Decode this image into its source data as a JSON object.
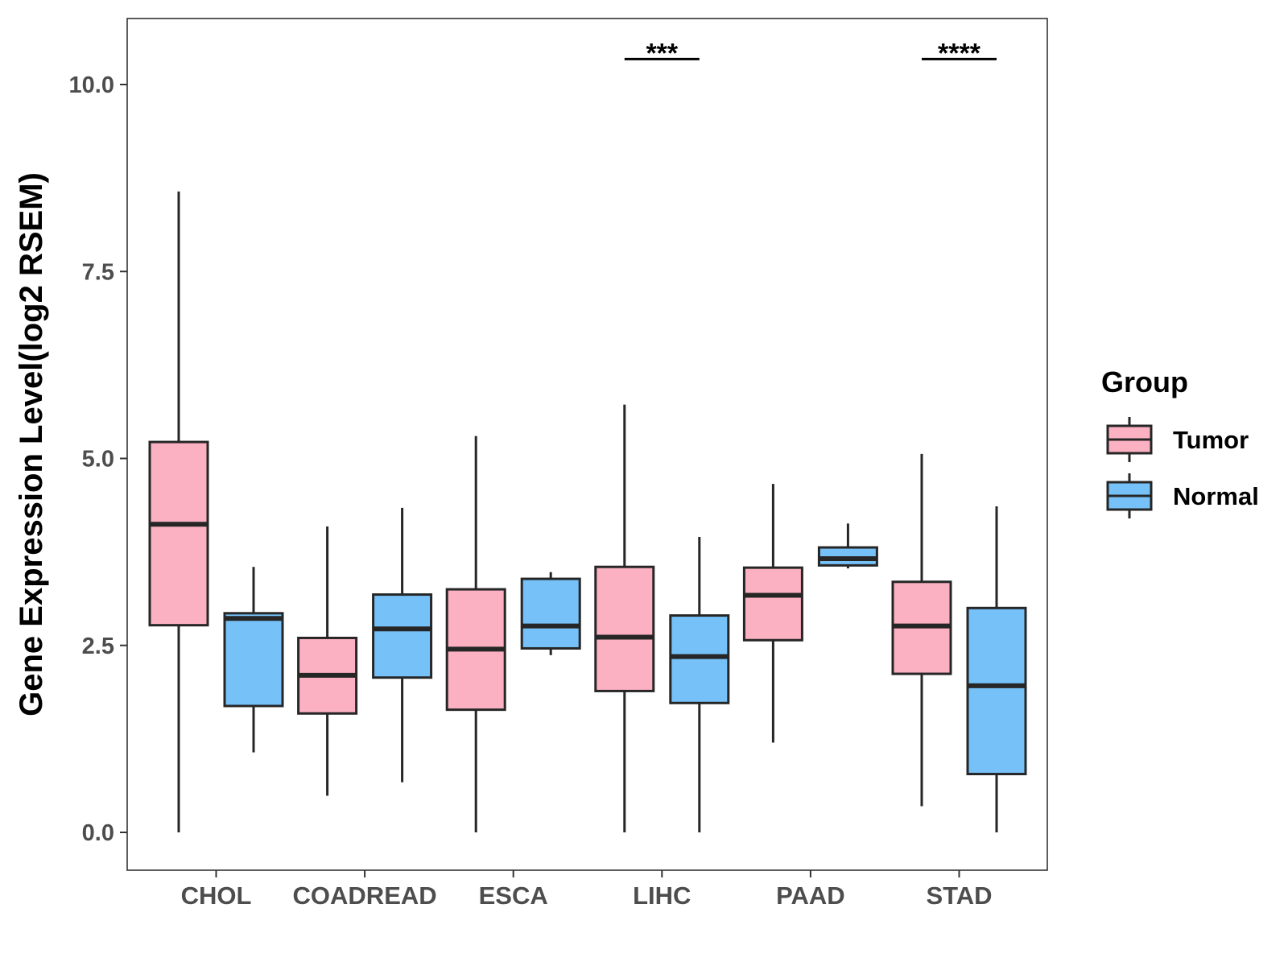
{
  "chart_data": {
    "type": "boxplot",
    "title": "",
    "xlabel": "",
    "ylabel": "Gene Expression Level(log2 RSEM)",
    "ylim": [
      -0.5,
      10.9
    ],
    "yticks": [
      0.0,
      2.5,
      5.0,
      7.5,
      10.0
    ],
    "ytick_labels": [
      "0.0",
      "2.5",
      "5.0",
      "7.5",
      "10.0"
    ],
    "categories": [
      "CHOL",
      "COADREAD",
      "ESCA",
      "LIHC",
      "PAAD",
      "STAD"
    ],
    "legend": {
      "title": "Group",
      "position": "right",
      "items": [
        {
          "label": "Tumor",
          "color": "#FBB1C1"
        },
        {
          "label": "Normal",
          "color": "#75C1F8"
        }
      ]
    },
    "series": [
      {
        "name": "Tumor",
        "color": "#FBB1C1",
        "boxes": [
          {
            "category": "CHOL",
            "min": 0.0,
            "q1": 2.77,
            "median": 4.12,
            "q3": 5.22,
            "max": 8.57
          },
          {
            "category": "COADREAD",
            "min": 0.49,
            "q1": 1.59,
            "median": 2.1,
            "q3": 2.6,
            "max": 4.09
          },
          {
            "category": "ESCA",
            "min": 0.0,
            "q1": 1.64,
            "median": 2.45,
            "q3": 3.25,
            "max": 5.3
          },
          {
            "category": "LIHC",
            "min": 0.0,
            "q1": 1.89,
            "median": 2.61,
            "q3": 3.55,
            "max": 5.72
          },
          {
            "category": "PAAD",
            "min": 1.2,
            "q1": 2.57,
            "median": 3.17,
            "q3": 3.54,
            "max": 4.66
          },
          {
            "category": "STAD",
            "min": 0.35,
            "q1": 2.12,
            "median": 2.76,
            "q3": 3.35,
            "max": 5.06
          }
        ]
      },
      {
        "name": "Normal",
        "color": "#75C1F8",
        "boxes": [
          {
            "category": "CHOL",
            "min": 1.07,
            "q1": 1.69,
            "median": 2.86,
            "q3": 2.93,
            "max": 3.55
          },
          {
            "category": "COADREAD",
            "min": 0.67,
            "q1": 2.07,
            "median": 2.72,
            "q3": 3.18,
            "max": 4.34
          },
          {
            "category": "ESCA",
            "min": 2.37,
            "q1": 2.46,
            "median": 2.76,
            "q3": 3.39,
            "max": 3.48
          },
          {
            "category": "LIHC",
            "min": 0.0,
            "q1": 1.73,
            "median": 2.35,
            "q3": 2.9,
            "max": 3.95
          },
          {
            "category": "PAAD",
            "min": 3.53,
            "q1": 3.57,
            "median": 3.66,
            "q3": 3.81,
            "max": 4.13
          },
          {
            "category": "STAD",
            "min": 0.0,
            "q1": 0.78,
            "median": 1.96,
            "q3": 3.0,
            "max": 4.36
          }
        ]
      }
    ],
    "annotations": [
      {
        "category": "LIHC",
        "label": "***",
        "y": 10.34
      },
      {
        "category": "STAD",
        "label": "****",
        "y": 10.34
      }
    ]
  }
}
